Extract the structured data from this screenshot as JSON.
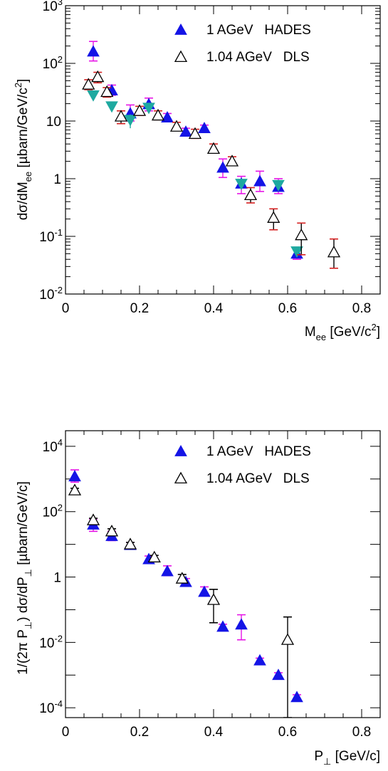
{
  "chart_data": [
    {
      "type": "scatter",
      "xlabel": "M",
      "xlabel_sub": "ee",
      "xlabel_unit": "[GeV/c",
      "xlabel_unit_sup": "2",
      "xlabel_unit_close": "]",
      "ylabel": "dσ/dM",
      "ylabel_sub": "ee",
      "ylabel_unit": "[µbarn/GeV/c",
      "ylabel_unit_sup": "2",
      "ylabel_unit_close": "]",
      "xlim": [
        0,
        0.85
      ],
      "ylim": [
        0.01,
        1000
      ],
      "yscale": "log",
      "xticks": [
        {
          "value": 0,
          "label": "0"
        },
        {
          "value": 0.2,
          "label": "0.2"
        },
        {
          "value": 0.4,
          "label": "0.4"
        },
        {
          "value": 0.6,
          "label": "0.6"
        },
        {
          "value": 0.8,
          "label": "0.8"
        }
      ],
      "yticks": [
        {
          "value": 0.01,
          "base": "10",
          "sup": "-2"
        },
        {
          "value": 0.1,
          "base": "10",
          "sup": "-1"
        },
        {
          "value": 1,
          "base": "1",
          "sup": ""
        },
        {
          "value": 10,
          "base": "10",
          "sup": ""
        },
        {
          "value": 100,
          "base": "10",
          "sup": "2"
        },
        {
          "value": 1000,
          "base": "10",
          "sup": "3"
        }
      ],
      "legend_position": "top-right",
      "series": [
        {
          "name": "1 AGeV   HADES",
          "marker": "filled-triangle-up",
          "color": "#1414e6",
          "err_color": "#e614e6",
          "points": [
            {
              "x": 0.075,
              "y": 160,
              "lo": 110,
              "hi": 240
            },
            {
              "x": 0.125,
              "y": 34,
              "lo": 28,
              "hi": 42
            },
            {
              "x": 0.175,
              "y": 13.5,
              "lo": 10,
              "hi": 19
            },
            {
              "x": 0.225,
              "y": 19.5,
              "lo": 15,
              "hi": 25
            },
            {
              "x": 0.275,
              "y": 11.5,
              "lo": 10,
              "hi": 13.5
            },
            {
              "x": 0.325,
              "y": 6.5,
              "lo": 5.5,
              "hi": 7.5
            },
            {
              "x": 0.375,
              "y": 7.5,
              "lo": 6.5,
              "hi": 8.5
            },
            {
              "x": 0.425,
              "y": 1.55,
              "lo": 1.05,
              "hi": 2.2
            },
            {
              "x": 0.475,
              "y": 0.82,
              "lo": 0.55,
              "hi": 1.1
            },
            {
              "x": 0.525,
              "y": 0.9,
              "lo": 0.6,
              "hi": 1.35
            },
            {
              "x": 0.575,
              "y": 0.72,
              "lo": 0.55,
              "hi": 1.0
            },
            {
              "x": 0.625,
              "y": 0.05,
              "lo": 0.04,
              "hi": 0.06
            }
          ]
        },
        {
          "name": "",
          "marker": "filled-triangle-down",
          "color": "#1ea9a0",
          "err_color": "#1ea9a0",
          "points": [
            {
              "x": 0.075,
              "y": 28,
              "lo": 24,
              "hi": 33
            },
            {
              "x": 0.125,
              "y": 18,
              "lo": 16,
              "hi": 20
            },
            {
              "x": 0.175,
              "y": 10.5,
              "lo": 7.5,
              "hi": 13
            },
            {
              "x": 0.225,
              "y": 17,
              "lo": 14.5,
              "hi": 19.5
            },
            {
              "x": 0.475,
              "y": 0.82,
              "lo": 0.7,
              "hi": 0.95
            },
            {
              "x": 0.575,
              "y": 0.78,
              "lo": 0.7,
              "hi": 0.88
            },
            {
              "x": 0.625,
              "y": 0.055,
              "lo": 0.05,
              "hi": 0.06
            }
          ]
        },
        {
          "name": "1.04 AGeV   DLS",
          "marker": "open-triangle-up",
          "color": "#000000",
          "err_color": "#000000",
          "sys_color": "#d61e1e",
          "points": [
            {
              "x": 0.062,
              "y": 43,
              "lo": 35,
              "hi": 52
            },
            {
              "x": 0.087,
              "y": 58,
              "lo": 46,
              "hi": 70
            },
            {
              "x": 0.112,
              "y": 32,
              "lo": 26,
              "hi": 38
            },
            {
              "x": 0.15,
              "y": 12,
              "lo": 9,
              "hi": 15
            },
            {
              "x": 0.2,
              "y": 15,
              "lo": 12.5,
              "hi": 18
            },
            {
              "x": 0.25,
              "y": 12.5,
              "lo": 10.5,
              "hi": 15
            },
            {
              "x": 0.3,
              "y": 8,
              "lo": 6.8,
              "hi": 9.5
            },
            {
              "x": 0.35,
              "y": 6,
              "lo": 5,
              "hi": 7.2
            },
            {
              "x": 0.4,
              "y": 3.3,
              "lo": 2.8,
              "hi": 4
            },
            {
              "x": 0.45,
              "y": 2,
              "lo": 1.7,
              "hi": 2.4
            },
            {
              "x": 0.5,
              "y": 0.52,
              "lo": 0.38,
              "hi": 0.7
            },
            {
              "x": 0.562,
              "y": 0.21,
              "lo": 0.13,
              "hi": 0.3
            },
            {
              "x": 0.637,
              "y": 0.105,
              "lo": 0.048,
              "hi": 0.17
            },
            {
              "x": 0.725,
              "y": 0.053,
              "lo": 0.028,
              "hi": 0.09
            }
          ]
        }
      ]
    },
    {
      "type": "scatter",
      "xlabel": "P",
      "xlabel_sub": "⊥",
      "xlabel_unit": "[GeV/c]",
      "ylabel": "1/(2π P",
      "ylabel_sub": "⊥",
      "ylabel_mid": ") dσ/dP",
      "ylabel_sub2": "⊥",
      "ylabel_unit": "[µbarn/GeV/c]",
      "xlim": [
        0,
        0.85
      ],
      "ylim": [
        5e-05,
        30000
      ],
      "yscale": "log",
      "xticks": [
        {
          "value": 0,
          "label": "0"
        },
        {
          "value": 0.2,
          "label": "0.2"
        },
        {
          "value": 0.4,
          "label": "0.4"
        },
        {
          "value": 0.6,
          "label": "0.6"
        },
        {
          "value": 0.8,
          "label": "0.8"
        }
      ],
      "yticks": [
        {
          "value": 0.0001,
          "base": "10",
          "sup": "-4"
        },
        {
          "value": 0.01,
          "base": "10",
          "sup": "-2"
        },
        {
          "value": 1,
          "base": "1",
          "sup": ""
        },
        {
          "value": 100,
          "base": "10",
          "sup": "2"
        },
        {
          "value": 10000,
          "base": "10",
          "sup": "4"
        }
      ],
      "legend_position": "top-right",
      "series": [
        {
          "name": "1 AGeV   HADES",
          "marker": "filled-triangle-up",
          "color": "#1414e6",
          "err_color": "#e614e6",
          "points": [
            {
              "x": 0.025,
              "y": 1200,
              "lo": 800,
              "hi": 1900
            },
            {
              "x": 0.075,
              "y": 40,
              "lo": 25,
              "hi": 60
            },
            {
              "x": 0.125,
              "y": 18,
              "lo": 13,
              "hi": 25
            },
            {
              "x": 0.175,
              "y": 9.5,
              "lo": 8,
              "hi": 11.5
            },
            {
              "x": 0.225,
              "y": 3.5,
              "lo": 2.8,
              "hi": 4.4
            },
            {
              "x": 0.275,
              "y": 1.5,
              "lo": 1.1,
              "hi": 2.2
            },
            {
              "x": 0.325,
              "y": 0.7,
              "lo": 0.55,
              "hi": 0.9
            },
            {
              "x": 0.375,
              "y": 0.35,
              "lo": 0.27,
              "hi": 0.5
            },
            {
              "x": 0.425,
              "y": 0.03,
              "lo": 0.025,
              "hi": 0.036
            },
            {
              "x": 0.475,
              "y": 0.035,
              "lo": 0.012,
              "hi": 0.07
            },
            {
              "x": 0.525,
              "y": 0.0028,
              "lo": 0.0024,
              "hi": 0.0033
            },
            {
              "x": 0.575,
              "y": 0.001,
              "lo": 0.00085,
              "hi": 0.00118
            },
            {
              "x": 0.625,
              "y": 0.00021,
              "lo": 0.00018,
              "hi": 0.00025
            }
          ]
        },
        {
          "name": "1.04 AGeV   DLS",
          "marker": "open-triangle-up",
          "color": "#000000",
          "err_color": "#000000",
          "points": [
            {
              "x": 0.025,
              "y": 450,
              "lo": 400,
              "hi": 520
            },
            {
              "x": 0.075,
              "y": 55,
              "lo": 48,
              "hi": 63
            },
            {
              "x": 0.125,
              "y": 25,
              "lo": 21,
              "hi": 30
            },
            {
              "x": 0.175,
              "y": 10,
              "lo": 9,
              "hi": 11.5
            },
            {
              "x": 0.24,
              "y": 4,
              "lo": 3.3,
              "hi": 4.6
            },
            {
              "x": 0.315,
              "y": 0.9,
              "lo": 0.7,
              "hi": 1.2
            },
            {
              "x": 0.4,
              "y": 0.2,
              "lo": 0.04,
              "hi": 0.42
            },
            {
              "x": 0.6,
              "y": 0.012,
              "lo": 5e-05,
              "hi": 0.06
            }
          ]
        }
      ]
    }
  ]
}
